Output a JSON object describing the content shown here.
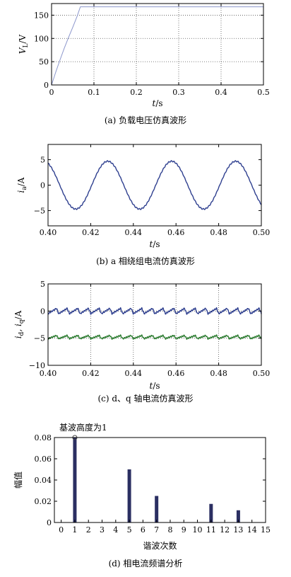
{
  "chart_data": [
    {
      "type": "line",
      "caption": "(a) 负载电压仿真波形",
      "ylabel": "V_L/V",
      "ylabel_main": "V",
      "ylabel_sub": "L",
      "ylabel_tail": "/V",
      "xlabel": "t/s",
      "xlabel_var": "t",
      "xlabel_unit": "/s",
      "xlim": [
        0,
        0.5
      ],
      "ylim": [
        0,
        175
      ],
      "xticks": [
        0,
        0.1,
        0.2,
        0.3,
        0.4,
        0.5
      ],
      "xtick_labels": [
        "0",
        "0.1",
        "0.2",
        "0.3",
        "0.4",
        "0.5"
      ],
      "yticks": [
        0,
        50,
        100,
        150
      ],
      "ytick_labels": [
        "0",
        "50",
        "100",
        "150"
      ],
      "grid": true,
      "series": [
        {
          "x": [
            0,
            0.01,
            0.02,
            0.03,
            0.04,
            0.05,
            0.06,
            0.068,
            0.07,
            0.1,
            0.2,
            0.3,
            0.4,
            0.5
          ],
          "y": [
            0,
            28,
            54,
            79,
            102,
            124,
            147,
            168,
            168,
            168,
            168,
            168,
            168,
            168
          ]
        }
      ]
    },
    {
      "type": "line",
      "caption": "(b) a 相绕组电流仿真波形",
      "ylabel": "i_a/A",
      "ylabel_main": "i",
      "ylabel_sub": "a",
      "ylabel_tail": "/A",
      "xlabel": "t/s",
      "xlabel_var": "t",
      "xlabel_unit": "/s",
      "xlim": [
        0.4,
        0.5
      ],
      "ylim": [
        -8,
        8
      ],
      "xticks": [
        0.4,
        0.42,
        0.44,
        0.46,
        0.48,
        0.5
      ],
      "xtick_labels": [
        "0.40",
        "0.42",
        "0.44",
        "0.46",
        "0.48",
        "0.50"
      ],
      "yticks": [
        -5,
        0,
        5
      ],
      "ytick_labels": [
        "−5",
        "0",
        "5"
      ],
      "grid": false,
      "series": [
        {
          "waveform": "sine",
          "amplitude": 4.7,
          "period": 0.03,
          "peak_at": 0.428,
          "x_start": 0.4,
          "x_end": 0.5
        }
      ]
    },
    {
      "type": "line",
      "caption": "(c) d、q 轴电流仿真波形",
      "ylabel": "i_d, i_q/A",
      "ylabel_main": "i",
      "ylabel_sub": "d",
      "ylabel_mid": ", i",
      "ylabel_sub2": "q",
      "ylabel_tail": "/A",
      "xlabel": "t/s",
      "xlabel_var": "t",
      "xlabel_unit": "/s",
      "xlim": [
        0.4,
        0.5
      ],
      "ylim": [
        -10,
        5
      ],
      "xticks": [
        0.4,
        0.42,
        0.44,
        0.46,
        0.48,
        0.5
      ],
      "xtick_labels": [
        "0.40",
        "0.42",
        "0.44",
        "0.46",
        "0.48",
        "0.50"
      ],
      "yticks": [
        -10,
        -5,
        0,
        5
      ],
      "ytick_labels": [
        "−10",
        "−5",
        "0",
        "5"
      ],
      "grid": true,
      "series": [
        {
          "waveform": "sawtooth",
          "mean": 0,
          "ripple": 0.5,
          "period": 0.005,
          "x_start": 0.4,
          "x_end": 0.5,
          "color": "#2e3f8f"
        },
        {
          "waveform": "sawtooth",
          "mean": -4.8,
          "ripple": 0.3,
          "period": 0.005,
          "x_start": 0.4,
          "x_end": 0.5,
          "color": "#2e7d32"
        }
      ]
    },
    {
      "type": "bar",
      "caption": "(d) 相电流频谱分析",
      "ylabel": "幅值",
      "xlabel": "谐波次数",
      "annotation": "基波高度为1",
      "xlim": [
        -0.5,
        15
      ],
      "ylim": [
        0,
        0.08
      ],
      "categories": [
        "0",
        "1",
        "2",
        "3",
        "4",
        "5",
        "6",
        "7",
        "8",
        "9",
        "10",
        "11",
        "12",
        "13",
        "14",
        "15"
      ],
      "values": [
        0,
        0.08,
        0,
        0,
        0,
        0.05,
        0,
        0.025,
        0,
        0,
        0,
        0.0175,
        0,
        0.0115,
        0,
        0
      ],
      "yticks": [
        0,
        0.02,
        0.04,
        0.06,
        0.08
      ],
      "ytick_labels": [
        "0",
        "0.02",
        "0.04",
        "0.06",
        "0.08"
      ],
      "grid": false
    }
  ],
  "colors": {
    "line_light": "#8c97cc",
    "line_dark": "#2e3f8f",
    "green": "#2e7d32",
    "bar": "#2b2f62",
    "grid": "#555555"
  }
}
